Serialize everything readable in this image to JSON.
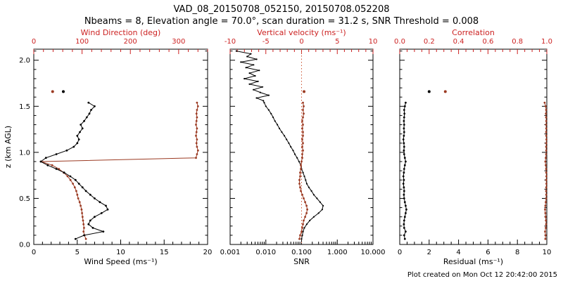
{
  "header": {
    "title": "VAD_08_20150708_052150, 20150708.052208",
    "subtitle": "Nbeams = 8, Elevation angle = 70.0°, scan duration = 31.2 s, SNR Threshold = 0.008"
  },
  "footer": {
    "created": "Plot created on Mon Oct 12 20:42:00 2015"
  },
  "colors": {
    "black": "#000000",
    "axis_red": "#cc2222",
    "data_red": "#9b3a22",
    "zero_line_red": "#cc5533",
    "background": "#ffffff"
  },
  "chart_data": {
    "type": "line",
    "ylabel": "z (km AGL)",
    "ylim": [
      0,
      2.12
    ],
    "yticks": [
      0.0,
      0.5,
      1.0,
      1.5,
      2.0
    ],
    "grid": false,
    "legend": "none",
    "panels": [
      {
        "name": "wind",
        "bottom_axis": {
          "label": "Wind Speed (ms⁻¹)",
          "range": [
            0,
            20
          ],
          "ticks": [
            0,
            5,
            10,
            15,
            20
          ],
          "tick_labels": [
            "0",
            "5",
            "10",
            "15",
            "20"
          ],
          "minor": 5
        },
        "top_axis": {
          "label": "Wind Direction (deg)",
          "range": [
            0,
            360
          ],
          "ticks": [
            0,
            100,
            200,
            300
          ],
          "tick_labels": [
            "0",
            "100",
            "200",
            "300"
          ],
          "minor": 5
        }
      },
      {
        "name": "snr",
        "bottom_axis": {
          "label": "SNR",
          "log": true,
          "range": [
            0.001,
            10
          ],
          "ticks": [
            0.001,
            0.01,
            0.1,
            1,
            10
          ],
          "tick_labels": [
            "0.001",
            "0.010",
            "0.100",
            "1.000",
            "10.000"
          ]
        },
        "top_axis": {
          "label": "Vertical velocity (ms⁻¹)",
          "range": [
            -10,
            10
          ],
          "ticks": [
            -10,
            -5,
            0,
            5,
            10
          ],
          "tick_labels": [
            "-10",
            "-5",
            "0",
            "5",
            "10"
          ],
          "minor": 5
        },
        "zero_line": 0
      },
      {
        "name": "residual",
        "bottom_axis": {
          "label": "Residual (ms⁻¹)",
          "range": [
            0,
            10
          ],
          "ticks": [
            0,
            2,
            4,
            6,
            8,
            10
          ],
          "tick_labels": [
            "0",
            "2",
            "4",
            "6",
            "8",
            "10"
          ],
          "minor": 4
        },
        "top_axis": {
          "label": "Correlation",
          "range": [
            0,
            1
          ],
          "ticks": [
            0.0,
            0.2,
            0.4,
            0.6,
            0.8,
            1.0
          ],
          "tick_labels": [
            "0.0",
            "0.2",
            "0.4",
            "0.6",
            "0.8",
            "1.0"
          ],
          "minor": 4
        }
      }
    ],
    "profile": {
      "z": [
        0.06,
        0.1,
        0.14,
        0.18,
        0.22,
        0.26,
        0.3,
        0.34,
        0.38,
        0.42,
        0.46,
        0.5,
        0.54,
        0.58,
        0.62,
        0.66,
        0.7,
        0.74,
        0.78,
        0.82,
        0.86,
        0.9,
        0.94,
        0.98,
        1.02,
        1.06,
        1.1,
        1.14,
        1.18,
        1.22,
        1.26,
        1.3,
        1.34,
        1.38,
        1.42,
        1.46,
        1.5,
        1.54
      ],
      "wind_speed": [
        4.8,
        5.8,
        8.0,
        6.8,
        6.3,
        6.5,
        7.0,
        7.8,
        8.5,
        8.3,
        7.6,
        7.0,
        6.5,
        6.0,
        5.6,
        5.2,
        4.8,
        4.2,
        3.5,
        2.6,
        1.6,
        0.8,
        1.4,
        2.6,
        3.8,
        4.6,
        5.0,
        5.2,
        5.0,
        5.3,
        5.6,
        5.4,
        5.8,
        6.1,
        6.4,
        6.6,
        7.0,
        6.3
      ],
      "wind_direction": [
        108,
        105,
        103,
        104,
        103,
        102,
        101,
        100,
        99,
        97,
        95,
        92,
        90,
        88,
        85,
        81,
        76,
        70,
        62,
        52,
        38,
        15,
        336,
        338,
        340,
        338,
        337,
        338,
        336,
        337,
        338,
        336,
        337,
        338,
        337,
        338,
        340,
        338
      ],
      "vertical_velocity": [
        -0.3,
        -0.2,
        0.0,
        0.1,
        0.2,
        0.3,
        0.5,
        0.7,
        0.8,
        0.7,
        0.5,
        0.3,
        0.1,
        -0.1,
        -0.2,
        -0.3,
        -0.3,
        -0.2,
        -0.2,
        -0.1,
        -0.1,
        0.0,
        0.1,
        0.1,
        0.2,
        0.1,
        0.2,
        0.1,
        0.2,
        0.2,
        0.1,
        0.2,
        0.1,
        0.2,
        0.3,
        0.2,
        0.3,
        0.2
      ],
      "snr": [
        0.1,
        0.105,
        0.11,
        0.12,
        0.14,
        0.17,
        0.22,
        0.3,
        0.38,
        0.4,
        0.33,
        0.27,
        0.22,
        0.19,
        0.16,
        0.14,
        0.13,
        0.12,
        0.11,
        0.1,
        0.095,
        0.085,
        0.075,
        0.065,
        0.058,
        0.05,
        0.044,
        0.038,
        0.033,
        0.028,
        0.024,
        0.021,
        0.018,
        0.016,
        0.014,
        0.012,
        0.01,
        0.009
      ],
      "residual": [
        0.35,
        0.3,
        0.4,
        0.3,
        0.28,
        0.3,
        0.35,
        0.4,
        0.45,
        0.4,
        0.35,
        0.3,
        0.28,
        0.3,
        0.28,
        0.25,
        0.28,
        0.25,
        0.28,
        0.3,
        0.35,
        0.4,
        0.35,
        0.3,
        0.28,
        0.3,
        0.28,
        0.25,
        0.28,
        0.3,
        0.28,
        0.3,
        0.28,
        0.3,
        0.32,
        0.3,
        0.35,
        0.4
      ],
      "correlation": [
        0.99,
        0.992,
        0.988,
        0.993,
        0.995,
        0.994,
        0.992,
        0.99,
        0.988,
        0.99,
        0.993,
        0.995,
        0.996,
        0.995,
        0.996,
        0.997,
        0.996,
        0.997,
        0.996,
        0.995,
        0.993,
        0.99,
        0.993,
        0.995,
        0.996,
        0.995,
        0.996,
        0.997,
        0.996,
        0.995,
        0.996,
        0.995,
        0.996,
        0.995,
        0.994,
        0.995,
        0.992,
        0.985
      ]
    },
    "snr_noise": {
      "z": [
        1.56,
        1.59,
        1.62,
        1.65,
        1.68,
        1.71,
        1.74,
        1.77,
        1.8,
        1.83,
        1.86,
        1.89,
        1.92,
        1.95,
        1.98,
        2.01,
        2.04,
        2.07,
        2.1
      ],
      "snr": [
        0.0085,
        0.0055,
        0.012,
        0.007,
        0.0045,
        0.008,
        0.0035,
        0.006,
        0.0025,
        0.005,
        0.0035,
        0.0065,
        0.0028,
        0.0045,
        0.002,
        0.0055,
        0.003,
        0.0038,
        0.0015
      ]
    },
    "outlier_gate": {
      "z": 1.66,
      "wind_speed": 3.4,
      "wind_direction": 39,
      "vertical_velocity": 0.35,
      "residual": 2.0,
      "correlation": 0.31
    }
  }
}
